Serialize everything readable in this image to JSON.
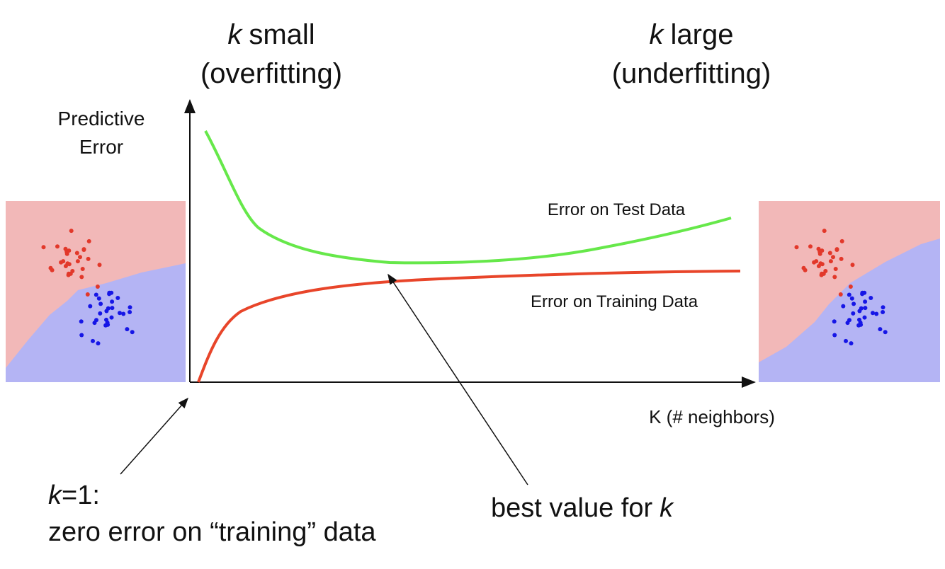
{
  "header": {
    "left": {
      "var": "k",
      "text": "small",
      "note": "(overfitting)"
    },
    "right": {
      "var": "k",
      "text": "large",
      "note": "(underfitting)"
    }
  },
  "axes": {
    "y_label": [
      "Predictive",
      "Error"
    ],
    "x_label": "K (# neighbors)"
  },
  "curves": {
    "test": "Error on Test Data",
    "training": "Error on Training Data"
  },
  "annotations": {
    "k1": {
      "var": "k",
      "text": "=1:",
      "detail": "zero error on “training” data"
    },
    "best": {
      "text": "best value for",
      "var": "k"
    }
  }
}
